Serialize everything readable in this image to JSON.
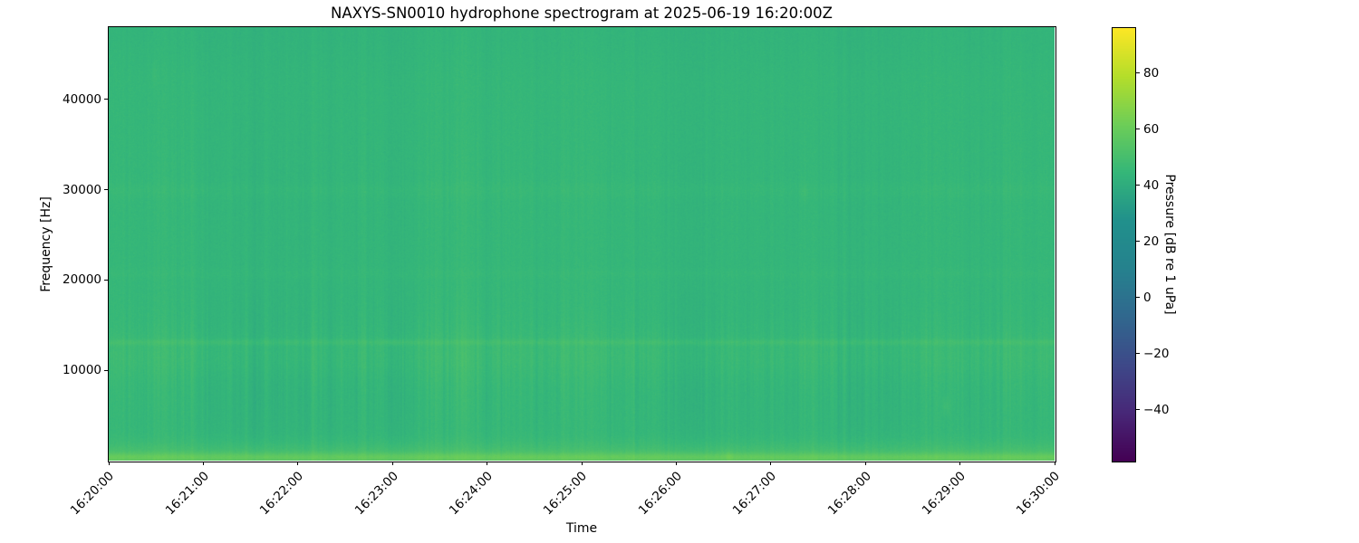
{
  "chart_data": {
    "type": "heatmap",
    "subtype": "spectrogram",
    "title": "NAXYS-SN0010 hydrophone spectrogram at 2025-06-19 16:20:00Z",
    "xlabel": "Time",
    "ylabel": "Frequency [Hz]",
    "x_ticks": [
      {
        "t": 0.0,
        "label": "16:20:00"
      },
      {
        "t": 0.1,
        "label": "16:21:00"
      },
      {
        "t": 0.2,
        "label": "16:22:00"
      },
      {
        "t": 0.3,
        "label": "16:23:00"
      },
      {
        "t": 0.4,
        "label": "16:24:00"
      },
      {
        "t": 0.5,
        "label": "16:25:00"
      },
      {
        "t": 0.6,
        "label": "16:26:00"
      },
      {
        "t": 0.7,
        "label": "16:27:00"
      },
      {
        "t": 0.8,
        "label": "16:28:00"
      },
      {
        "t": 0.9,
        "label": "16:29:00"
      },
      {
        "t": 1.0,
        "label": "16:30:00"
      }
    ],
    "y_ticks": [
      {
        "v": 10000,
        "label": "10000"
      },
      {
        "v": 20000,
        "label": "20000"
      },
      {
        "v": 30000,
        "label": "30000"
      },
      {
        "v": 40000,
        "label": "40000"
      }
    ],
    "freq_range_hz": [
      0,
      48000
    ],
    "time_range": [
      "16:20:00",
      "16:30:00"
    ],
    "grid": false,
    "colorbar": {
      "label": "Pressure [dB re 1 uPa]",
      "ticks": [
        {
          "v": 80,
          "label": "80"
        },
        {
          "v": 60,
          "label": "60"
        },
        {
          "v": 40,
          "label": "40"
        },
        {
          "v": 20,
          "label": "20"
        },
        {
          "v": 0,
          "label": "0"
        },
        {
          "v": -20,
          "label": "−20"
        },
        {
          "v": -40,
          "label": "−40"
        }
      ],
      "vmin": -58.4,
      "vmax": 96,
      "colormap": "viridis",
      "stops": [
        [
          0.0,
          "#440154"
        ],
        [
          0.111,
          "#482878"
        ],
        [
          0.222,
          "#3e4989"
        ],
        [
          0.333,
          "#31688e"
        ],
        [
          0.444,
          "#26828e"
        ],
        [
          0.556,
          "#21918c"
        ],
        [
          0.667,
          "#35b779"
        ],
        [
          0.778,
          "#6ece58"
        ],
        [
          0.889,
          "#b5de2b"
        ],
        [
          1.0,
          "#fde725"
        ]
      ]
    },
    "field": {
      "seed": 1234,
      "base_db": 44.2,
      "bands": [
        {
          "center_hz": 11600,
          "sigma_hz": 2600,
          "amp_db": 2.0
        },
        {
          "center_hz": 13100,
          "sigma_hz": 330,
          "amp_db": 3.0
        },
        {
          "center_hz": 20700,
          "sigma_hz": 550,
          "amp_db": 0.8
        },
        {
          "center_hz": 29900,
          "sigma_hz": 900,
          "amp_db": 1.0
        }
      ],
      "low_freq_boosts": [
        {
          "center_hz": 0,
          "sigma_hz": 1800,
          "amp_db": 8.0
        },
        {
          "center_hz": 380,
          "sigma_hz": 460,
          "amp_db": 7.0
        }
      ],
      "high_freq_droop": {
        "start_hz": 42000,
        "span_hz": 5000,
        "amp_db": -1.0
      },
      "column_noise_db": 0.9,
      "pixel_noise_db": 0.65,
      "bright_columns": [
        {
          "t": 0.048,
          "db": 1.4
        },
        {
          "t": 0.145,
          "db": 1.7
        },
        {
          "t": 0.215,
          "db": 1.4
        },
        {
          "t": 0.345,
          "db": 1.2
        },
        {
          "t": 0.455,
          "db": 1.5
        },
        {
          "t": 0.555,
          "db": 1.3
        },
        {
          "t": 0.655,
          "db": 1.8
        },
        {
          "t": 0.744,
          "db": 2.2
        },
        {
          "t": 0.8,
          "db": 1.4
        },
        {
          "t": 0.875,
          "db": 1.3
        },
        {
          "t": 0.94,
          "db": 1.6
        }
      ],
      "blobs": [
        {
          "t": 0.048,
          "f": 42800,
          "df": 1300,
          "dt": 0.003,
          "db": 1.8
        },
        {
          "t": 0.735,
          "f": 29800,
          "df": 1100,
          "dt": 0.004,
          "db": 1.6
        },
        {
          "t": 0.885,
          "f": 6100,
          "df": 1000,
          "dt": 0.0035,
          "db": 3.2
        },
        {
          "t": 0.655,
          "f": 500,
          "df": 600,
          "dt": 0.004,
          "db": 3.0
        },
        {
          "t": 0.3,
          "f": 13100,
          "df": 400,
          "dt": 0.01,
          "db": 1.5
        }
      ]
    }
  }
}
